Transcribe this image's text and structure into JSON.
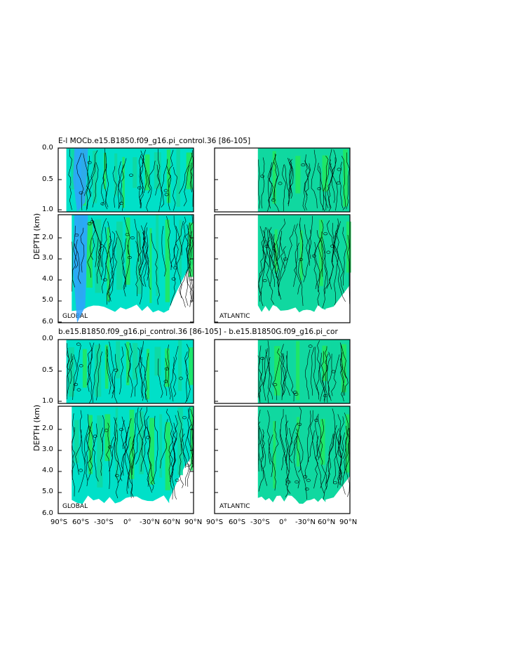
{
  "titles": {
    "top": "E-l MOCb.e15.B1850.f09_g16.pi_control.36  [86-105]",
    "bottom": "b.e15.B1850.f09_g16.pi_control.36  [86-105]  -  b.e15.B1850G.f09_g16.pi_cor"
  },
  "y_axis_label": "DEPTH (km)",
  "panel_labels": {
    "global": "GLOBAL",
    "atlantic": "ATLANTIC"
  },
  "y_ticks_upper": [
    "0.0",
    "0.5",
    "1.0"
  ],
  "y_ticks_lower": [
    "2.0",
    "3.0",
    "4.0",
    "5.0",
    "6.0"
  ],
  "x_ticks_left": [
    "90°S",
    "60°S",
    "-30°S",
    "0°",
    "-30°N",
    "60°N",
    "90°N"
  ],
  "x_ticks_right": [
    "90°S",
    "60°S",
    "-30°S",
    "0°",
    "-30°N",
    "60°N",
    "90°N"
  ],
  "colors": {
    "cyan": "#00e0c8",
    "green": "#20e860",
    "blue": "#30a0ff",
    "teal": "#10d8a0",
    "line": "#000000"
  },
  "chart_data": [
    {
      "type": "heatmap",
      "title": "E-l MOCb.e15.B1850.f09_g16.pi_control.36  [86-105]",
      "panel": "GLOBAL",
      "ylabel": "DEPTH (km)",
      "ylim": [
        6.0,
        0.0
      ],
      "x_ticks": [
        "90°S",
        "60°S",
        "-30°S",
        "0°",
        "-30°N",
        "60°N",
        "90°N"
      ],
      "y_ticks": [
        "0.0",
        "0.5",
        "1.0",
        "2.0",
        "3.0",
        "4.0",
        "5.0",
        "6.0"
      ],
      "contour_labels": [
        "0"
      ]
    },
    {
      "type": "heatmap",
      "title": "E-l MOCb.e15.B1850.f09_g16.pi_control.36  [86-105]",
      "panel": "ATLANTIC",
      "ylim": [
        6.0,
        0.0
      ],
      "contour_labels": [
        "0"
      ]
    },
    {
      "type": "heatmap",
      "title": "b.e15.B1850.f09_g16.pi_control.36  [86-105]  -  b.e15.B1850G.f09_g16.pi_cor",
      "panel": "GLOBAL",
      "ylabel": "DEPTH (km)",
      "ylim": [
        6.0,
        0.0
      ],
      "x_ticks": [
        "90°S",
        "60°S",
        "-30°S",
        "0°",
        "-30°N",
        "60°N",
        "90°N"
      ],
      "contour_labels": [
        "0"
      ]
    },
    {
      "type": "heatmap",
      "title": "b.e15.B1850.f09_g16.pi_control.36  [86-105]  -  b.e15.B1850G.f09_g16.pi_cor",
      "panel": "ATLANTIC",
      "ylim": [
        6.0,
        0.0
      ],
      "x_ticks": [
        "90°S",
        "60°S",
        "-30°S",
        "0°",
        "-30°N",
        "60°N",
        "90°N"
      ],
      "contour_labels": [
        "0"
      ]
    }
  ]
}
